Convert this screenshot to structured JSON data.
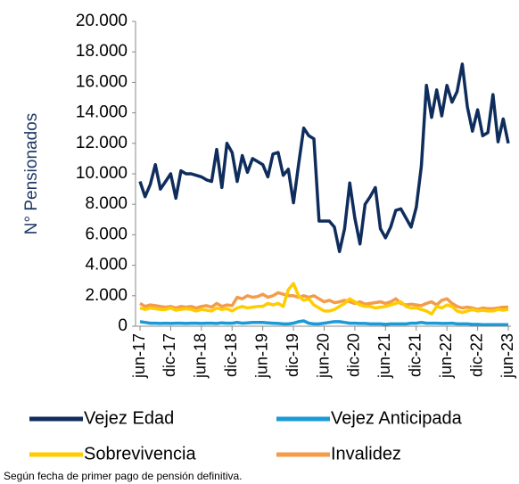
{
  "chart_data": {
    "type": "line",
    "y_label": "N° Pensionados",
    "note": "Según fecha de primer pago de pensión definitiva.",
    "categories": [
      "jun-17",
      null,
      null,
      null,
      null,
      null,
      "dic-17",
      null,
      null,
      null,
      null,
      null,
      "jun-18",
      null,
      null,
      null,
      null,
      null,
      "dic-18",
      null,
      null,
      null,
      null,
      null,
      "jun-19",
      null,
      null,
      null,
      null,
      null,
      "dic-19",
      null,
      null,
      null,
      null,
      null,
      "jun-20",
      null,
      null,
      null,
      null,
      null,
      "dic-20",
      null,
      null,
      null,
      null,
      null,
      "jun-21",
      null,
      null,
      null,
      null,
      null,
      "dic-21",
      null,
      null,
      null,
      null,
      null,
      "jun-22",
      null,
      null,
      null,
      null,
      null,
      "dic-22",
      null,
      null,
      null,
      null,
      null,
      "jun-23"
    ],
    "series": [
      {
        "name": "Vejez Edad",
        "color": "#0f2d5c",
        "values": [
          9500,
          8500,
          9300,
          10600,
          9000,
          9500,
          10000,
          8400,
          10200,
          10000,
          10000,
          9900,
          9800,
          9600,
          9500,
          11600,
          9100,
          12000,
          11400,
          9500,
          11200,
          10100,
          11000,
          10800,
          10600,
          9800,
          11300,
          11400,
          9900,
          10300,
          8100,
          10600,
          13000,
          12500,
          12300,
          6900,
          6900,
          6900,
          6500,
          4900,
          6400,
          9400,
          7100,
          5400,
          8000,
          8500,
          9100,
          6400,
          5800,
          6500,
          7600,
          7700,
          7100,
          6500,
          7800,
          10500,
          15800,
          13700,
          15500,
          13800,
          15800,
          14700,
          15400,
          17200,
          14400,
          12800,
          14200,
          12500,
          12700,
          15200,
          12100,
          13600,
          12000
        ]
      },
      {
        "name": "Vejez Anticipada",
        "color": "#1a9bd7",
        "values": [
          300,
          250,
          200,
          200,
          180,
          200,
          180,
          200,
          200,
          180,
          200,
          200,
          180,
          200,
          200,
          180,
          220,
          200,
          200,
          250,
          200,
          220,
          250,
          250,
          250,
          220,
          200,
          180,
          150,
          150,
          200,
          300,
          350,
          200,
          150,
          150,
          200,
          250,
          300,
          300,
          250,
          200,
          200,
          180,
          180,
          150,
          150,
          150,
          120,
          150,
          150,
          150,
          150,
          200,
          200,
          250,
          200,
          200,
          200,
          180,
          180,
          200,
          150,
          150,
          150,
          120,
          120,
          100,
          100,
          100,
          100,
          100,
          100
        ]
      },
      {
        "name": "Sobrevivencia",
        "color": "#ffcc00",
        "values": [
          1200,
          1100,
          1200,
          1150,
          1100,
          1100,
          1200,
          1050,
          1100,
          1150,
          1100,
          1000,
          1100,
          1050,
          1000,
          1200,
          1100,
          1150,
          1000,
          1200,
          1300,
          1200,
          1250,
          1300,
          1300,
          1500,
          1400,
          1500,
          1300,
          2400,
          2800,
          2000,
          1700,
          1800,
          1400,
          1200,
          1000,
          1000,
          1100,
          1300,
          1500,
          1800,
          1600,
          1400,
          1300,
          1300,
          1200,
          1250,
          1300,
          1400,
          1500,
          1600,
          1300,
          1200,
          1200,
          1100,
          1000,
          800,
          1300,
          1200,
          1400,
          1300,
          1000,
          900,
          1000,
          1100,
          1000,
          1050,
          1000,
          1000,
          1100,
          1050,
          1100
        ]
      },
      {
        "name": "Invalidez",
        "color": "#f39c4a",
        "values": [
          1500,
          1300,
          1400,
          1350,
          1300,
          1250,
          1300,
          1200,
          1300,
          1250,
          1300,
          1200,
          1300,
          1350,
          1250,
          1500,
          1300,
          1400,
          1350,
          1900,
          1800,
          2000,
          1900,
          1950,
          2100,
          1900,
          2000,
          2200,
          2100,
          2000,
          2000,
          1900,
          2000,
          1900,
          2000,
          1800,
          1600,
          1700,
          1550,
          1600,
          1700,
          1600,
          1500,
          1600,
          1450,
          1500,
          1550,
          1600,
          1500,
          1600,
          1800,
          1500,
          1400,
          1450,
          1400,
          1350,
          1500,
          1600,
          1400,
          1700,
          1800,
          1500,
          1300,
          1200,
          1250,
          1200,
          1100,
          1200,
          1150,
          1150,
          1200,
          1250,
          1250
        ]
      }
    ],
    "ylim": [
      0,
      20000
    ],
    "yticks": [
      0,
      {
        "value": 2000,
        "label": "2.000"
      },
      {
        "value": 4000,
        "label": "4.000"
      },
      {
        "value": 6000,
        "label": "6.000"
      },
      {
        "value": 8000,
        "label": "8.000"
      },
      {
        "value": 10000,
        "label": "10.000"
      },
      {
        "value": 12000,
        "label": "12.000"
      },
      {
        "value": 14000,
        "label": "14.000"
      },
      {
        "value": 16000,
        "label": "16.000"
      },
      {
        "value": 18000,
        "label": "18.000"
      },
      {
        "value": 20000,
        "label": "20.000"
      }
    ],
    "grid": false
  }
}
